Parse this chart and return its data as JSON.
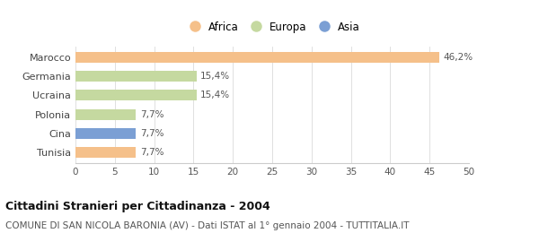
{
  "categories": [
    "Tunisia",
    "Cina",
    "Polonia",
    "Ucraina",
    "Germania",
    "Marocco"
  ],
  "values": [
    7.7,
    7.7,
    7.7,
    15.4,
    15.4,
    46.2
  ],
  "labels": [
    "7,7%",
    "7,7%",
    "7,7%",
    "15,4%",
    "15,4%",
    "46,2%"
  ],
  "colors": [
    "#f5c08a",
    "#7b9fd4",
    "#c5d9a0",
    "#c5d9a0",
    "#c5d9a0",
    "#f5c08a"
  ],
  "legend": [
    {
      "label": "Africa",
      "color": "#f5c08a"
    },
    {
      "label": "Europa",
      "color": "#c5d9a0"
    },
    {
      "label": "Asia",
      "color": "#7b9fd4"
    }
  ],
  "xlim": [
    0,
    50
  ],
  "xticks": [
    0,
    5,
    10,
    15,
    20,
    25,
    30,
    35,
    40,
    45,
    50
  ],
  "title": "Cittadini Stranieri per Cittadinanza - 2004",
  "subtitle": "COMUNE DI SAN NICOLA BARONIA (AV) - Dati ISTAT al 1° gennaio 2004 - TUTTITALIA.IT",
  "title_fontsize": 9,
  "subtitle_fontsize": 7.5,
  "bar_height": 0.55,
  "background_color": "#ffffff",
  "grid_color": "#e0e0e0"
}
